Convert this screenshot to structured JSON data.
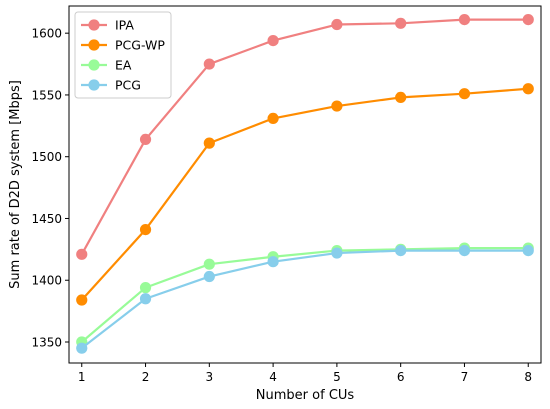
{
  "chart_data": {
    "type": "line",
    "title": "",
    "xlabel": "Number of CUs",
    "ylabel": "Sum rate of D2D system [Mbps]",
    "x": [
      1,
      2,
      3,
      4,
      5,
      6,
      7,
      8
    ],
    "xlim": [
      0.8,
      8.2
    ],
    "ylim": [
      1333,
      1622
    ],
    "xticks": [
      1,
      2,
      3,
      4,
      5,
      6,
      7,
      8
    ],
    "yticks": [
      1350,
      1400,
      1450,
      1500,
      1550,
      1600
    ],
    "grid": false,
    "legend_position": "upper-left",
    "series": [
      {
        "name": "IPA",
        "color": "#f08080",
        "values": [
          1421,
          1514,
          1575,
          1594,
          1607,
          1608,
          1611,
          1611
        ]
      },
      {
        "name": "PCG-WP",
        "color": "#ff8c00",
        "values": [
          1384,
          1441,
          1511,
          1531,
          1541,
          1548,
          1551,
          1555
        ]
      },
      {
        "name": "EA",
        "color": "#98fb98",
        "values": [
          1350,
          1394,
          1413,
          1419,
          1424,
          1425,
          1426,
          1426
        ]
      },
      {
        "name": "PCG",
        "color": "#87ceeb",
        "values": [
          1345,
          1385,
          1403,
          1415,
          1422,
          1424,
          1424,
          1424
        ]
      }
    ]
  }
}
